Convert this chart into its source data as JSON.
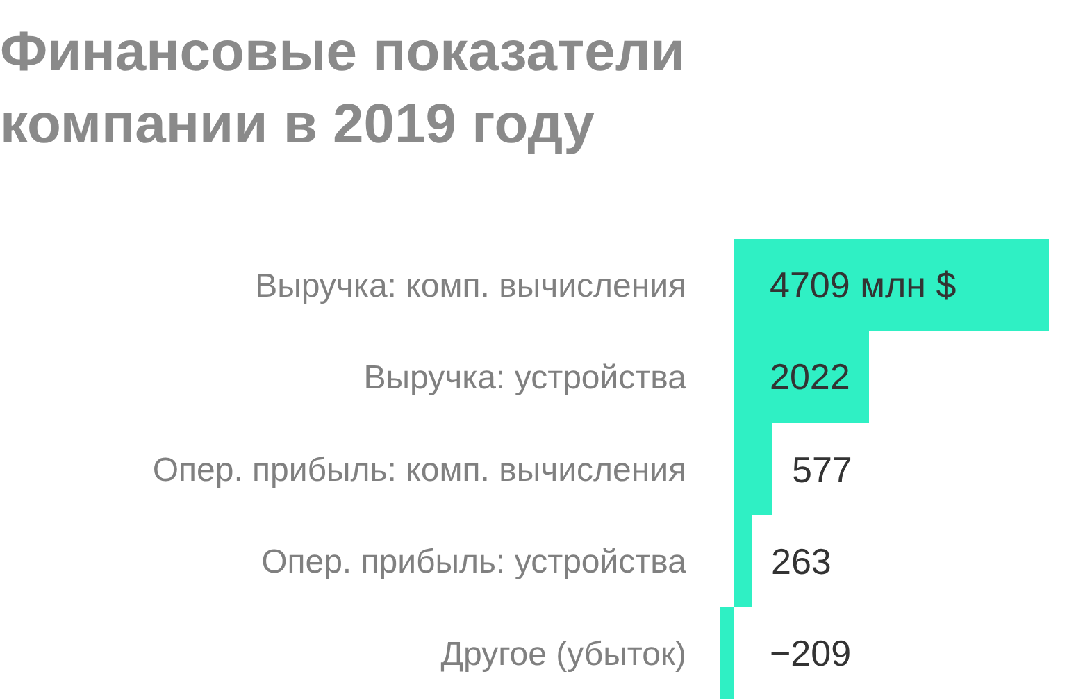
{
  "chart_data": {
    "type": "bar",
    "orientation": "horizontal",
    "title": "Финансовые показатели компании в 2019 году",
    "categories": [
      "Выручка: комп. вычисления",
      "Выручка: устройства",
      "Опер. прибыль: комп. вычисления",
      "Опер. прибыль: устройства",
      "Другое (убыток)"
    ],
    "values": [
      4709,
      2022,
      577,
      263,
      -209
    ],
    "value_labels": [
      "4709 млн $",
      "2022",
      "577",
      "263",
      "−209"
    ],
    "color": "#2ff0c4",
    "tick_labels": "y",
    "grid": false,
    "legend": false
  }
}
